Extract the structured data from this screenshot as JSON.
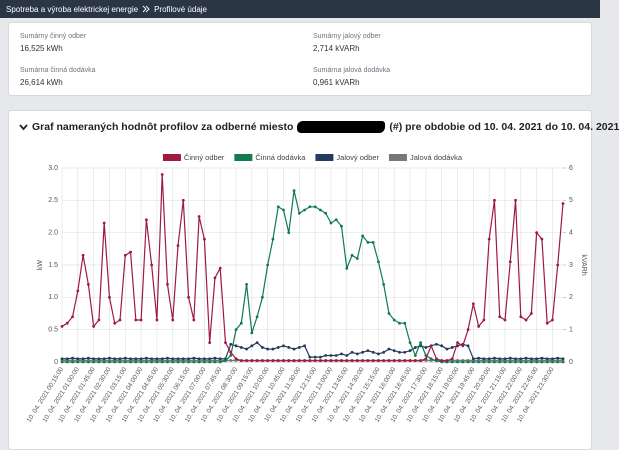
{
  "breadcrumb": [
    "Spotreba a výroba elektrickej energie",
    "Profilové údaje"
  ],
  "summary": [
    {
      "label": "Sumárny činný odber",
      "value": "16,525 kWh"
    },
    {
      "label": "Sumárny jalový odber",
      "value": "2,714 kVARh"
    },
    {
      "label": "Sumárna činná dodávka",
      "value": "26,614 kWh"
    },
    {
      "label": "Sumárna jalová dodávka",
      "value": "0,961 kVARh"
    }
  ],
  "chart_data": {
    "type": "line",
    "title": "Graf nameraných hodnôt profilov za odberné miesto",
    "title_suffix": "(#) pre obdobie od 10. 04. 2021 do 10. 04. 2021",
    "ylabel": "kW",
    "y2label": "kVARh",
    "grid": true,
    "legend": "top",
    "ylim": [
      0,
      3
    ],
    "yticks": [
      0,
      0.5,
      {
        "value": 1,
        "label": "1.0"
      },
      1.5,
      {
        "value": 2,
        "label": "2.0"
      },
      2.5,
      {
        "value": 3,
        "label": "3.0"
      }
    ],
    "y2lim": [
      0,
      6
    ],
    "y2ticks": [
      0,
      1,
      2,
      3,
      4,
      5,
      6
    ],
    "categories": [
      "10. 04. 2021 00:15:00",
      null,
      null,
      "10. 04. 2021 01:00:00",
      null,
      null,
      "10. 04. 2021 01:45:00",
      null,
      null,
      "10. 04. 2021 02:30:00",
      null,
      null,
      "10. 04. 2021 03:15:00",
      null,
      null,
      "10. 04. 2021 04:00:00",
      null,
      null,
      "10. 04. 2021 04:45:00",
      null,
      null,
      "10. 04. 2021 05:30:00",
      null,
      null,
      "10. 04. 2021 06:15:00",
      null,
      null,
      "10. 04. 2021 07:00:00",
      null,
      null,
      "10. 04. 2021 07:45:00",
      null,
      null,
      "10. 04. 2021 08:30:00",
      null,
      null,
      "10. 04. 2021 09:15:00",
      null,
      null,
      "10. 04. 2021 10:00:00",
      null,
      null,
      "10. 04. 2021 10:45:00",
      null,
      null,
      "10. 04. 2021 11:30:00",
      null,
      null,
      "10. 04. 2021 12:15:00",
      null,
      null,
      "10. 04. 2021 13:00:00",
      null,
      null,
      "10. 04. 2021 13:45:00",
      null,
      null,
      "10. 04. 2021 14:30:00",
      null,
      null,
      "10. 04. 2021 15:15:00",
      null,
      null,
      "10. 04. 2021 16:00:00",
      null,
      null,
      "10. 04. 2021 16:45:00",
      null,
      null,
      "10. 04. 2021 17:30:00",
      null,
      null,
      "10. 04. 2021 18:15:00",
      null,
      null,
      "10. 04. 2021 19:00:00",
      null,
      null,
      "10. 04. 2021 19:45:00",
      null,
      null,
      "10. 04. 2021 20:30:00",
      null,
      null,
      "10. 04. 2021 21:15:00",
      null,
      null,
      "10. 04. 2021 22:00:00",
      null,
      null,
      "10. 04. 2021 22:45:00",
      null,
      null,
      "10. 04. 2021 23:30:00",
      null,
      null
    ],
    "series": [
      {
        "name": "Činný odber",
        "color": "#9e1a40",
        "values": [
          0.55,
          0.6,
          0.7,
          1.1,
          1.65,
          1.2,
          0.55,
          0.65,
          2.15,
          1.0,
          0.6,
          0.65,
          1.65,
          1.7,
          0.65,
          0.65,
          2.2,
          1.5,
          0.65,
          2.9,
          1.2,
          0.65,
          1.8,
          2.5,
          1.0,
          0.65,
          2.25,
          1.9,
          0.3,
          1.3,
          1.45,
          0.3,
          0.15,
          0.05,
          0.02,
          0.02,
          0.02,
          0.02,
          0.02,
          0.02,
          0.02,
          0.02,
          0.02,
          0.02,
          0.02,
          0.02,
          0.02,
          0.02,
          0.02,
          0.02,
          0.02,
          0.02,
          0.02,
          0.02,
          0.02,
          0.02,
          0.02,
          0.02,
          0.02,
          0.02,
          0.02,
          0.02,
          0.02,
          0.02,
          0.02,
          0.02,
          0.02,
          0.02,
          0.02,
          0.05,
          0.25,
          0.05,
          0.02,
          0.02,
          0.05,
          0.3,
          0.25,
          0.5,
          0.9,
          0.55,
          0.65,
          1.9,
          2.5,
          0.7,
          0.65,
          1.55,
          2.5,
          0.7,
          0.65,
          0.75,
          2.0,
          1.9,
          0.6,
          0.65,
          1.5,
          2.45
        ]
      },
      {
        "name": "Činná dodávka",
        "color": "#117a50",
        "values": [
          0,
          0,
          0,
          0,
          0,
          0,
          0,
          0,
          0,
          0,
          0,
          0,
          0,
          0,
          0,
          0,
          0,
          0,
          0,
          0,
          0,
          0,
          0,
          0,
          0,
          0,
          0,
          0,
          0,
          0,
          0,
          0.02,
          0.1,
          0.5,
          0.6,
          1.2,
          0.45,
          0.7,
          1.0,
          1.5,
          1.9,
          2.4,
          2.35,
          2.0,
          2.65,
          2.3,
          2.35,
          2.4,
          2.4,
          2.35,
          2.3,
          2.15,
          2.2,
          2.1,
          1.45,
          1.65,
          1.6,
          1.95,
          1.85,
          1.85,
          1.55,
          1.2,
          0.75,
          0.65,
          0.6,
          0.6,
          0.3,
          0.1,
          0.3,
          0.1,
          0.05,
          0.02,
          0,
          0,
          0,
          0,
          0,
          0,
          0,
          0,
          0,
          0,
          0,
          0,
          0,
          0,
          0,
          0,
          0,
          0,
          0,
          0,
          0,
          0,
          0,
          0
        ]
      },
      {
        "name": "Jalový odber",
        "color": "#243a5e",
        "axis": "y2",
        "values": [
          0.1,
          0.1,
          0.12,
          0.1,
          0.1,
          0.12,
          0.1,
          0.1,
          0.1,
          0.12,
          0.1,
          0.1,
          0.12,
          0.1,
          0.1,
          0.1,
          0.12,
          0.1,
          0.1,
          0.1,
          0.12,
          0.1,
          0.1,
          0.1,
          0.1,
          0.12,
          0.1,
          0.1,
          0.1,
          0.12,
          0.1,
          0.1,
          0.55,
          0.5,
          0.45,
          0.4,
          0.5,
          0.6,
          0.45,
          0.4,
          0.4,
          0.45,
          0.5,
          0.45,
          0.4,
          0.45,
          0.5,
          0.15,
          0.15,
          0.15,
          0.2,
          0.2,
          0.2,
          0.25,
          0.2,
          0.3,
          0.25,
          0.3,
          0.35,
          0.3,
          0.25,
          0.3,
          0.4,
          0.35,
          0.3,
          0.3,
          0.35,
          0.45,
          0.5,
          0.45,
          0.5,
          0.55,
          0.5,
          0.4,
          0.45,
          0.5,
          0.55,
          0.5,
          0.1,
          0.12,
          0.1,
          0.1,
          0.12,
          0.1,
          0.1,
          0.12,
          0.1,
          0.1,
          0.12,
          0.1,
          0.1,
          0.12,
          0.1,
          0.1,
          0.12,
          0.1
        ]
      },
      {
        "name": "Jalová dodávka",
        "color": "#777777",
        "axis": "y2",
        "values": [
          0.05,
          0.05,
          0.05,
          0.05,
          0.05,
          0.05,
          0.05,
          0.05,
          0.05,
          0.05,
          0.05,
          0.05,
          0.05,
          0.05,
          0.05,
          0.05,
          0.05,
          0.05,
          0.05,
          0.05,
          0.05,
          0.05,
          0.05,
          0.05,
          0.05,
          0.05,
          0.05,
          0.05,
          0.05,
          0.05,
          0.05,
          0.05,
          0.05,
          0.05,
          0.05,
          0.05,
          0.05,
          0.05,
          0.05,
          0.05,
          0.05,
          0.05,
          0.05,
          0.05,
          0.05,
          0.05,
          0.05,
          0.05,
          0.05,
          0.05,
          0.05,
          0.05,
          0.05,
          0.05,
          0.05,
          0.05,
          0.05,
          0.05,
          0.05,
          0.05,
          0.05,
          0.05,
          0.05,
          0.05,
          0.05,
          0.05,
          0.05,
          0.05,
          0.05,
          0.05,
          0.05,
          0.05,
          0.05,
          0.05,
          0.05,
          0.05,
          0.05,
          0.05,
          0.05,
          0.05,
          0.05,
          0.05,
          0.05,
          0.05,
          0.05,
          0.05,
          0.05,
          0.05,
          0.05,
          0.05,
          0.05,
          0.05,
          0.05,
          0.05,
          0.05,
          0.05
        ]
      }
    ]
  }
}
